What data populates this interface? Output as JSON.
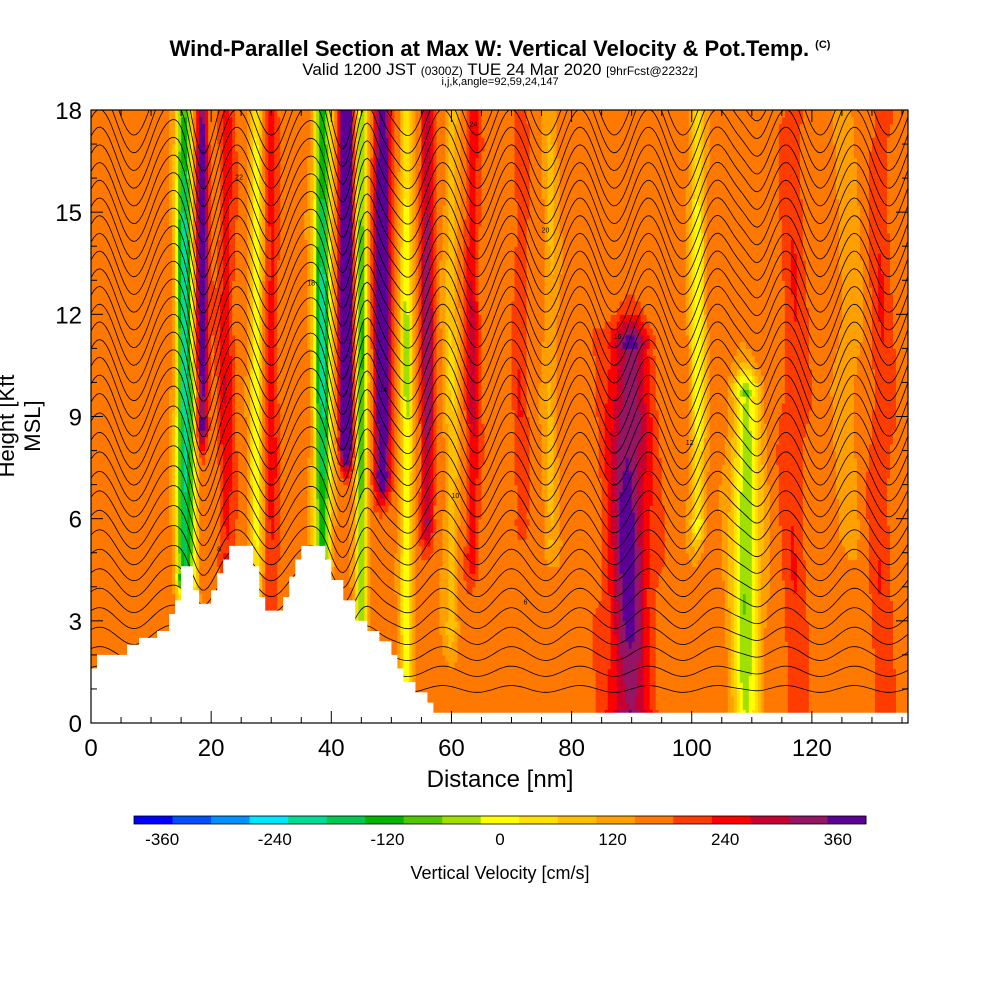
{
  "header": {
    "title": "Wind-Parallel Section at Max W: Vertical Velocity & Pot.Temp.",
    "copyright": "(C)",
    "valid_prefix": "Valid 1200 JST",
    "valid_utc": "(0300Z)",
    "valid_date": "TUE 24 Mar 2020",
    "forecast": "[9hrFcst@2232z]",
    "grid_info": "i,j,k,angle=92,59,24,147"
  },
  "chart_data": {
    "type": "heatmap",
    "xlabel": "Distance [nm]",
    "ylabel": "Height [Kft MSL]",
    "xlim": [
      0,
      136
    ],
    "ylim": [
      0,
      18
    ],
    "x_ticks": [
      0,
      20,
      40,
      60,
      80,
      100,
      120
    ],
    "y_ticks": [
      0,
      3,
      6,
      9,
      12,
      15,
      18
    ],
    "colorbar": {
      "label": "Vertical Velocity [cm/s]",
      "min": -390,
      "max": 390,
      "step": 30,
      "tick_values": [
        -360,
        -240,
        -120,
        0,
        120,
        240,
        360
      ],
      "tick_labels": [
        "-360",
        "-240",
        "-120",
        "0",
        "120",
        "240",
        "360"
      ],
      "colors": [
        "#0000ff",
        "#0050ff",
        "#0090ff",
        "#00e6ff",
        "#00dc96",
        "#00c850",
        "#00b400",
        "#50c800",
        "#a0e000",
        "#ffff00",
        "#ffe000",
        "#ffc000",
        "#ffa000",
        "#ff7800",
        "#ff3c00",
        "#ff0000",
        "#c80032",
        "#961464",
        "#5a0096"
      ]
    },
    "terrain_kft": [
      [
        0,
        1.6
      ],
      [
        1,
        1.6
      ],
      [
        1,
        2.0
      ],
      [
        6,
        2.0
      ],
      [
        6,
        2.3
      ],
      [
        8,
        2.3
      ],
      [
        8,
        2.5
      ],
      [
        11,
        2.5
      ],
      [
        11,
        2.7
      ],
      [
        13,
        2.7
      ],
      [
        13,
        3.2
      ],
      [
        14,
        3.2
      ],
      [
        14,
        3.6
      ],
      [
        15,
        3.6
      ],
      [
        15,
        4.6
      ],
      [
        17,
        4.6
      ],
      [
        17,
        3.9
      ],
      [
        18,
        3.9
      ],
      [
        18,
        3.5
      ],
      [
        20,
        3.5
      ],
      [
        20,
        3.9
      ],
      [
        21,
        3.9
      ],
      [
        21,
        4.4
      ],
      [
        22,
        4.4
      ],
      [
        22,
        4.8
      ],
      [
        23,
        4.8
      ],
      [
        23,
        5.2
      ],
      [
        27,
        5.2
      ],
      [
        27,
        4.6
      ],
      [
        28,
        4.6
      ],
      [
        28,
        3.7
      ],
      [
        29,
        3.7
      ],
      [
        29,
        3.3
      ],
      [
        32,
        3.3
      ],
      [
        32,
        3.7
      ],
      [
        33,
        3.7
      ],
      [
        33,
        4.3
      ],
      [
        34,
        4.3
      ],
      [
        34,
        4.8
      ],
      [
        35,
        4.8
      ],
      [
        35,
        5.2
      ],
      [
        39,
        5.2
      ],
      [
        39,
        4.8
      ],
      [
        40,
        4.8
      ],
      [
        40,
        4.2
      ],
      [
        42,
        4.2
      ],
      [
        42,
        3.6
      ],
      [
        44,
        3.6
      ],
      [
        44,
        3.0
      ],
      [
        46,
        3.0
      ],
      [
        46,
        2.7
      ],
      [
        48,
        2.7
      ],
      [
        48,
        2.4
      ],
      [
        50,
        2.4
      ],
      [
        50,
        2.0
      ],
      [
        51,
        2.0
      ],
      [
        51,
        1.6
      ],
      [
        52,
        1.6
      ],
      [
        52,
        1.2
      ],
      [
        54,
        1.2
      ],
      [
        54,
        0.9
      ],
      [
        56,
        0.9
      ],
      [
        56,
        0.6
      ],
      [
        57,
        0.6
      ],
      [
        57,
        0.3
      ],
      [
        136,
        0.3
      ]
    ],
    "w_features": [
      {
        "x": 15.5,
        "y1": 4.5,
        "y2": 18,
        "w": 1.3,
        "amp": -280
      },
      {
        "x": 18.5,
        "y1": 9.0,
        "y2": 18,
        "w": 0.9,
        "amp": 200
      },
      {
        "x": 17.0,
        "y1": 3.8,
        "y2": 9.5,
        "w": 1.0,
        "amp": -90
      },
      {
        "x": 22.5,
        "y1": 5.0,
        "y2": 18,
        "w": 1.2,
        "amp": 70
      },
      {
        "x": 27.5,
        "y1": 3.3,
        "y2": 18,
        "w": 1.0,
        "amp": -130
      },
      {
        "x": 30.0,
        "y1": 3.3,
        "y2": 18,
        "w": 1.1,
        "amp": 60
      },
      {
        "x": 38.5,
        "y1": 4.8,
        "y2": 18,
        "w": 1.4,
        "amp": -270
      },
      {
        "x": 42.5,
        "y1": 8.5,
        "y2": 18,
        "w": 1.0,
        "amp": 360
      },
      {
        "x": 45.0,
        "y1": 3.0,
        "y2": 18,
        "w": 1.0,
        "amp": -200
      },
      {
        "x": 48.5,
        "y1": 7.5,
        "y2": 18,
        "w": 1.2,
        "amp": 250
      },
      {
        "x": 52.5,
        "y1": 1.2,
        "y2": 18,
        "w": 1.0,
        "amp": -140
      },
      {
        "x": 56.0,
        "y1": 6.0,
        "y2": 18,
        "w": 1.0,
        "amp": 130
      },
      {
        "x": 60.0,
        "y1": 3.0,
        "y2": 18,
        "w": 1.2,
        "amp": -70
      },
      {
        "x": 63.5,
        "y1": 5.0,
        "y2": 18,
        "w": 1.1,
        "amp": 80
      },
      {
        "x": 71.5,
        "y1": 6.0,
        "y2": 18,
        "w": 1.1,
        "amp": 40
      },
      {
        "x": 76.5,
        "y1": 5.5,
        "y2": 18,
        "w": 1.2,
        "amp": -50
      },
      {
        "x": 89.5,
        "y1": 0.5,
        "y2": 11,
        "w": 3.3,
        "amp": 150
      },
      {
        "x": 101.0,
        "y1": 6.0,
        "y2": 18,
        "w": 1.2,
        "amp": -130
      },
      {
        "x": 109.0,
        "y1": 0.3,
        "y2": 9.5,
        "w": 2.3,
        "amp": -170
      },
      {
        "x": 117.0,
        "y1": 0.3,
        "y2": 18,
        "w": 2.0,
        "amp": 40
      },
      {
        "x": 126.0,
        "y1": 6.0,
        "y2": 18,
        "w": 2.0,
        "amp": -35
      },
      {
        "x": 131.5,
        "y1": 0.3,
        "y2": 18,
        "w": 1.8,
        "amp": 40
      }
    ],
    "theta_contour_labels": [
      "5",
      "6",
      "8",
      "10",
      "12",
      "14",
      "16",
      "18",
      "20",
      "22",
      "24",
      "26"
    ]
  }
}
